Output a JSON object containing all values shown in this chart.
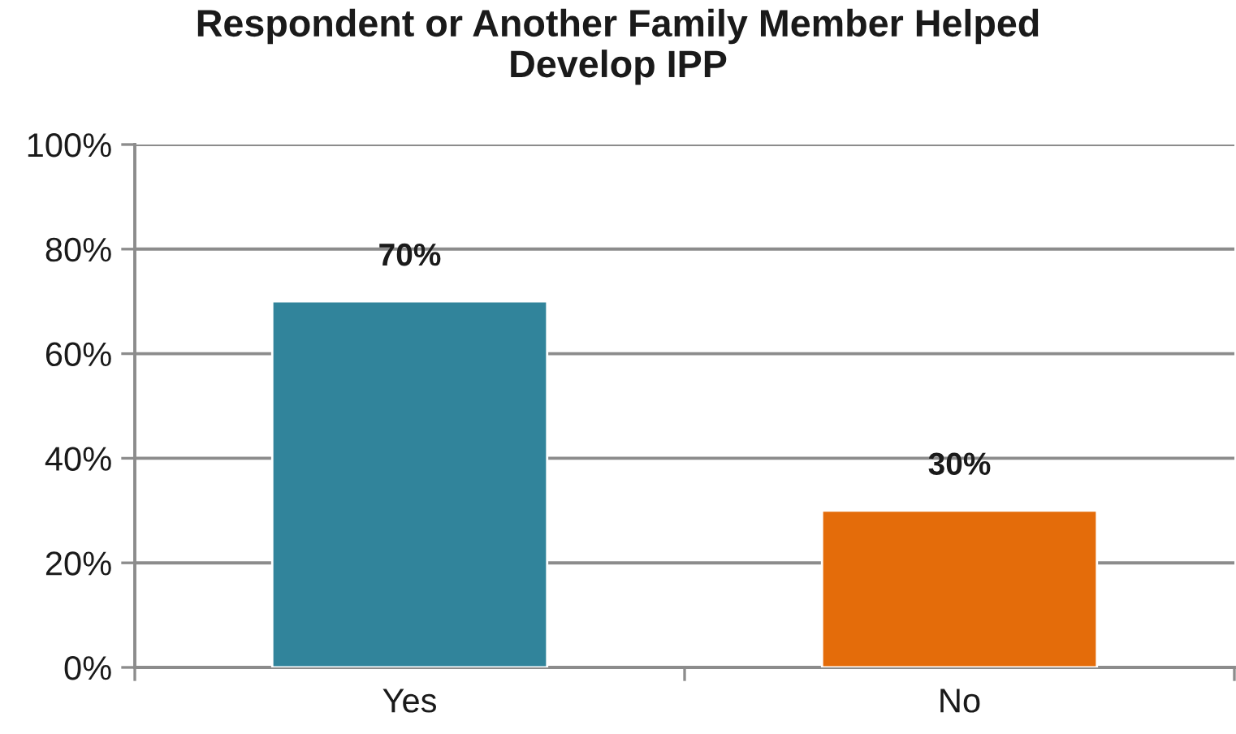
{
  "chart_data": {
    "type": "bar",
    "title": "Respondent or Another Family Member Helped\nDevelop IPP",
    "categories": [
      "Yes",
      "No"
    ],
    "values": [
      70,
      30
    ],
    "colors": [
      "#31849b",
      "#e46c0a"
    ],
    "value_labels": [
      "70%",
      "30%"
    ],
    "ylim": [
      0,
      100
    ],
    "yticks": [
      {
        "value": 0,
        "label": "0%"
      },
      {
        "value": 20,
        "label": "20%"
      },
      {
        "value": 40,
        "label": "40%"
      },
      {
        "value": 60,
        "label": "60%"
      },
      {
        "value": 80,
        "label": "80%"
      },
      {
        "value": 100,
        "label": "100%"
      }
    ],
    "grid": "y"
  }
}
